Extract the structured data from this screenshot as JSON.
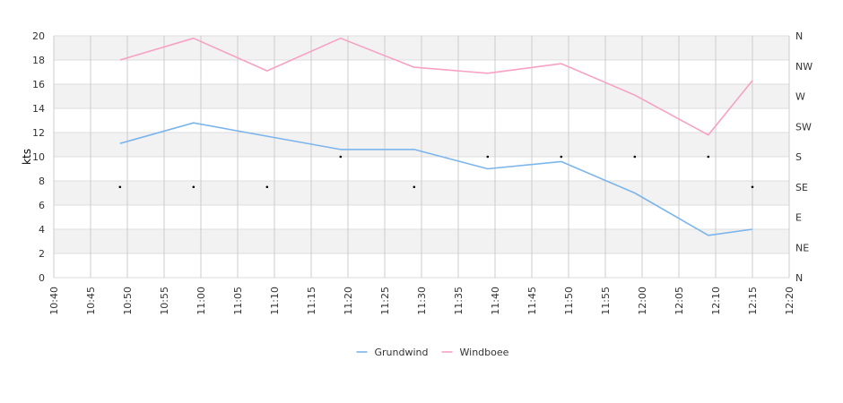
{
  "chart_data": {
    "type": "line",
    "title": "",
    "ylabel": "kts",
    "ylim": [
      0,
      20
    ],
    "yticks": [
      0,
      2,
      4,
      6,
      8,
      10,
      12,
      14,
      16,
      18,
      20
    ],
    "xlim": [
      "10:40",
      "12:20"
    ],
    "xticks": [
      "10:40",
      "10:45",
      "10:50",
      "10:55",
      "11:00",
      "11:05",
      "11:10",
      "11:15",
      "11:20",
      "11:25",
      "11:30",
      "11:35",
      "11:40",
      "11:45",
      "11:50",
      "11:55",
      "12:00",
      "12:05",
      "12:10",
      "12:15",
      "12:20"
    ],
    "y2ticks": [
      "N",
      "NE",
      "E",
      "SE",
      "S",
      "SW",
      "W",
      "NW",
      "N"
    ],
    "grid": true,
    "legend_position": "bottom",
    "series": [
      {
        "name": "Grundwind",
        "color": "#7cb5ec",
        "x": [
          "10:49",
          "10:59",
          "11:09",
          "11:19",
          "11:29",
          "11:39",
          "11:49",
          "11:59",
          "12:09",
          "12:15"
        ],
        "values": [
          11.1,
          12.8,
          11.7,
          10.6,
          10.6,
          9.0,
          9.6,
          7.0,
          3.5,
          4.0
        ]
      },
      {
        "name": "Windboee",
        "color": "#f7a1c4",
        "x": [
          "10:49",
          "10:59",
          "11:09",
          "11:19",
          "11:29",
          "11:39",
          "11:49",
          "11:59",
          "12:09",
          "12:15"
        ],
        "values": [
          18.0,
          19.8,
          17.1,
          19.8,
          17.4,
          16.9,
          17.7,
          15.1,
          11.8,
          16.3
        ]
      }
    ],
    "direction_points": {
      "x": [
        "10:49",
        "10:59",
        "11:09",
        "11:19",
        "11:29",
        "11:39",
        "11:49",
        "11:59",
        "12:09",
        "12:15"
      ],
      "values": [
        "SE",
        "SE",
        "SE",
        "S",
        "SE",
        "S",
        "S",
        "S",
        "S",
        "SE"
      ]
    }
  }
}
